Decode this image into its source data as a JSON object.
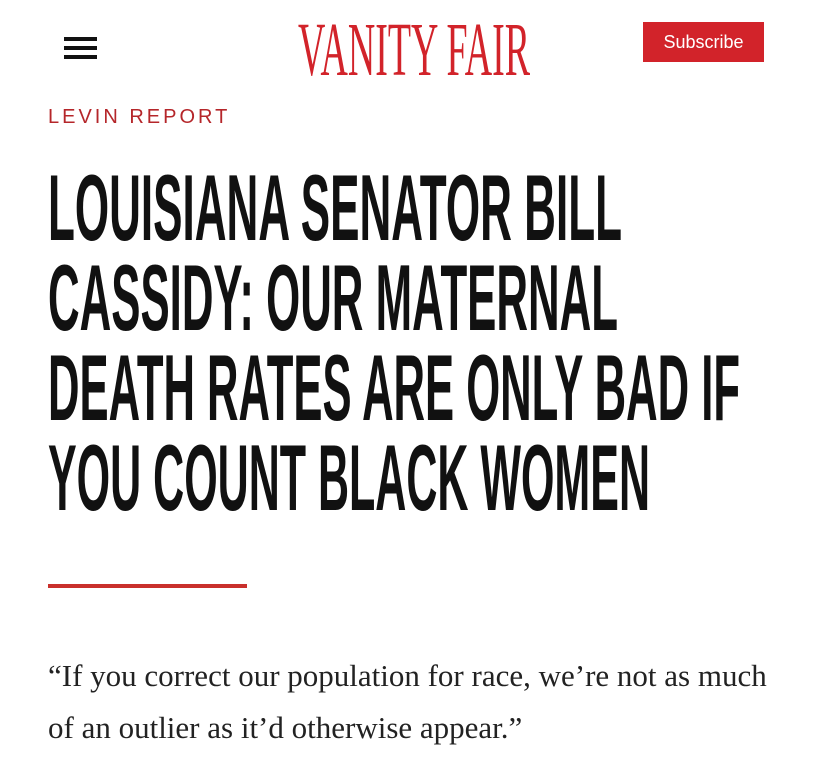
{
  "header": {
    "logo": "VANITY FAIR",
    "subscribe": "Subscribe"
  },
  "article": {
    "rubric": "LEVIN REPORT",
    "headline_lines": [
      "LOUISIANA SENATOR BILL",
      "CASSIDY: OUR MATERNAL",
      "DEATH RATES ARE ONLY BAD IF",
      "YOU COUNT BLACK WOMEN"
    ],
    "quote": "“If you correct our population for race, we’re not as much of an outlier as it’d otherwise appear.”"
  }
}
